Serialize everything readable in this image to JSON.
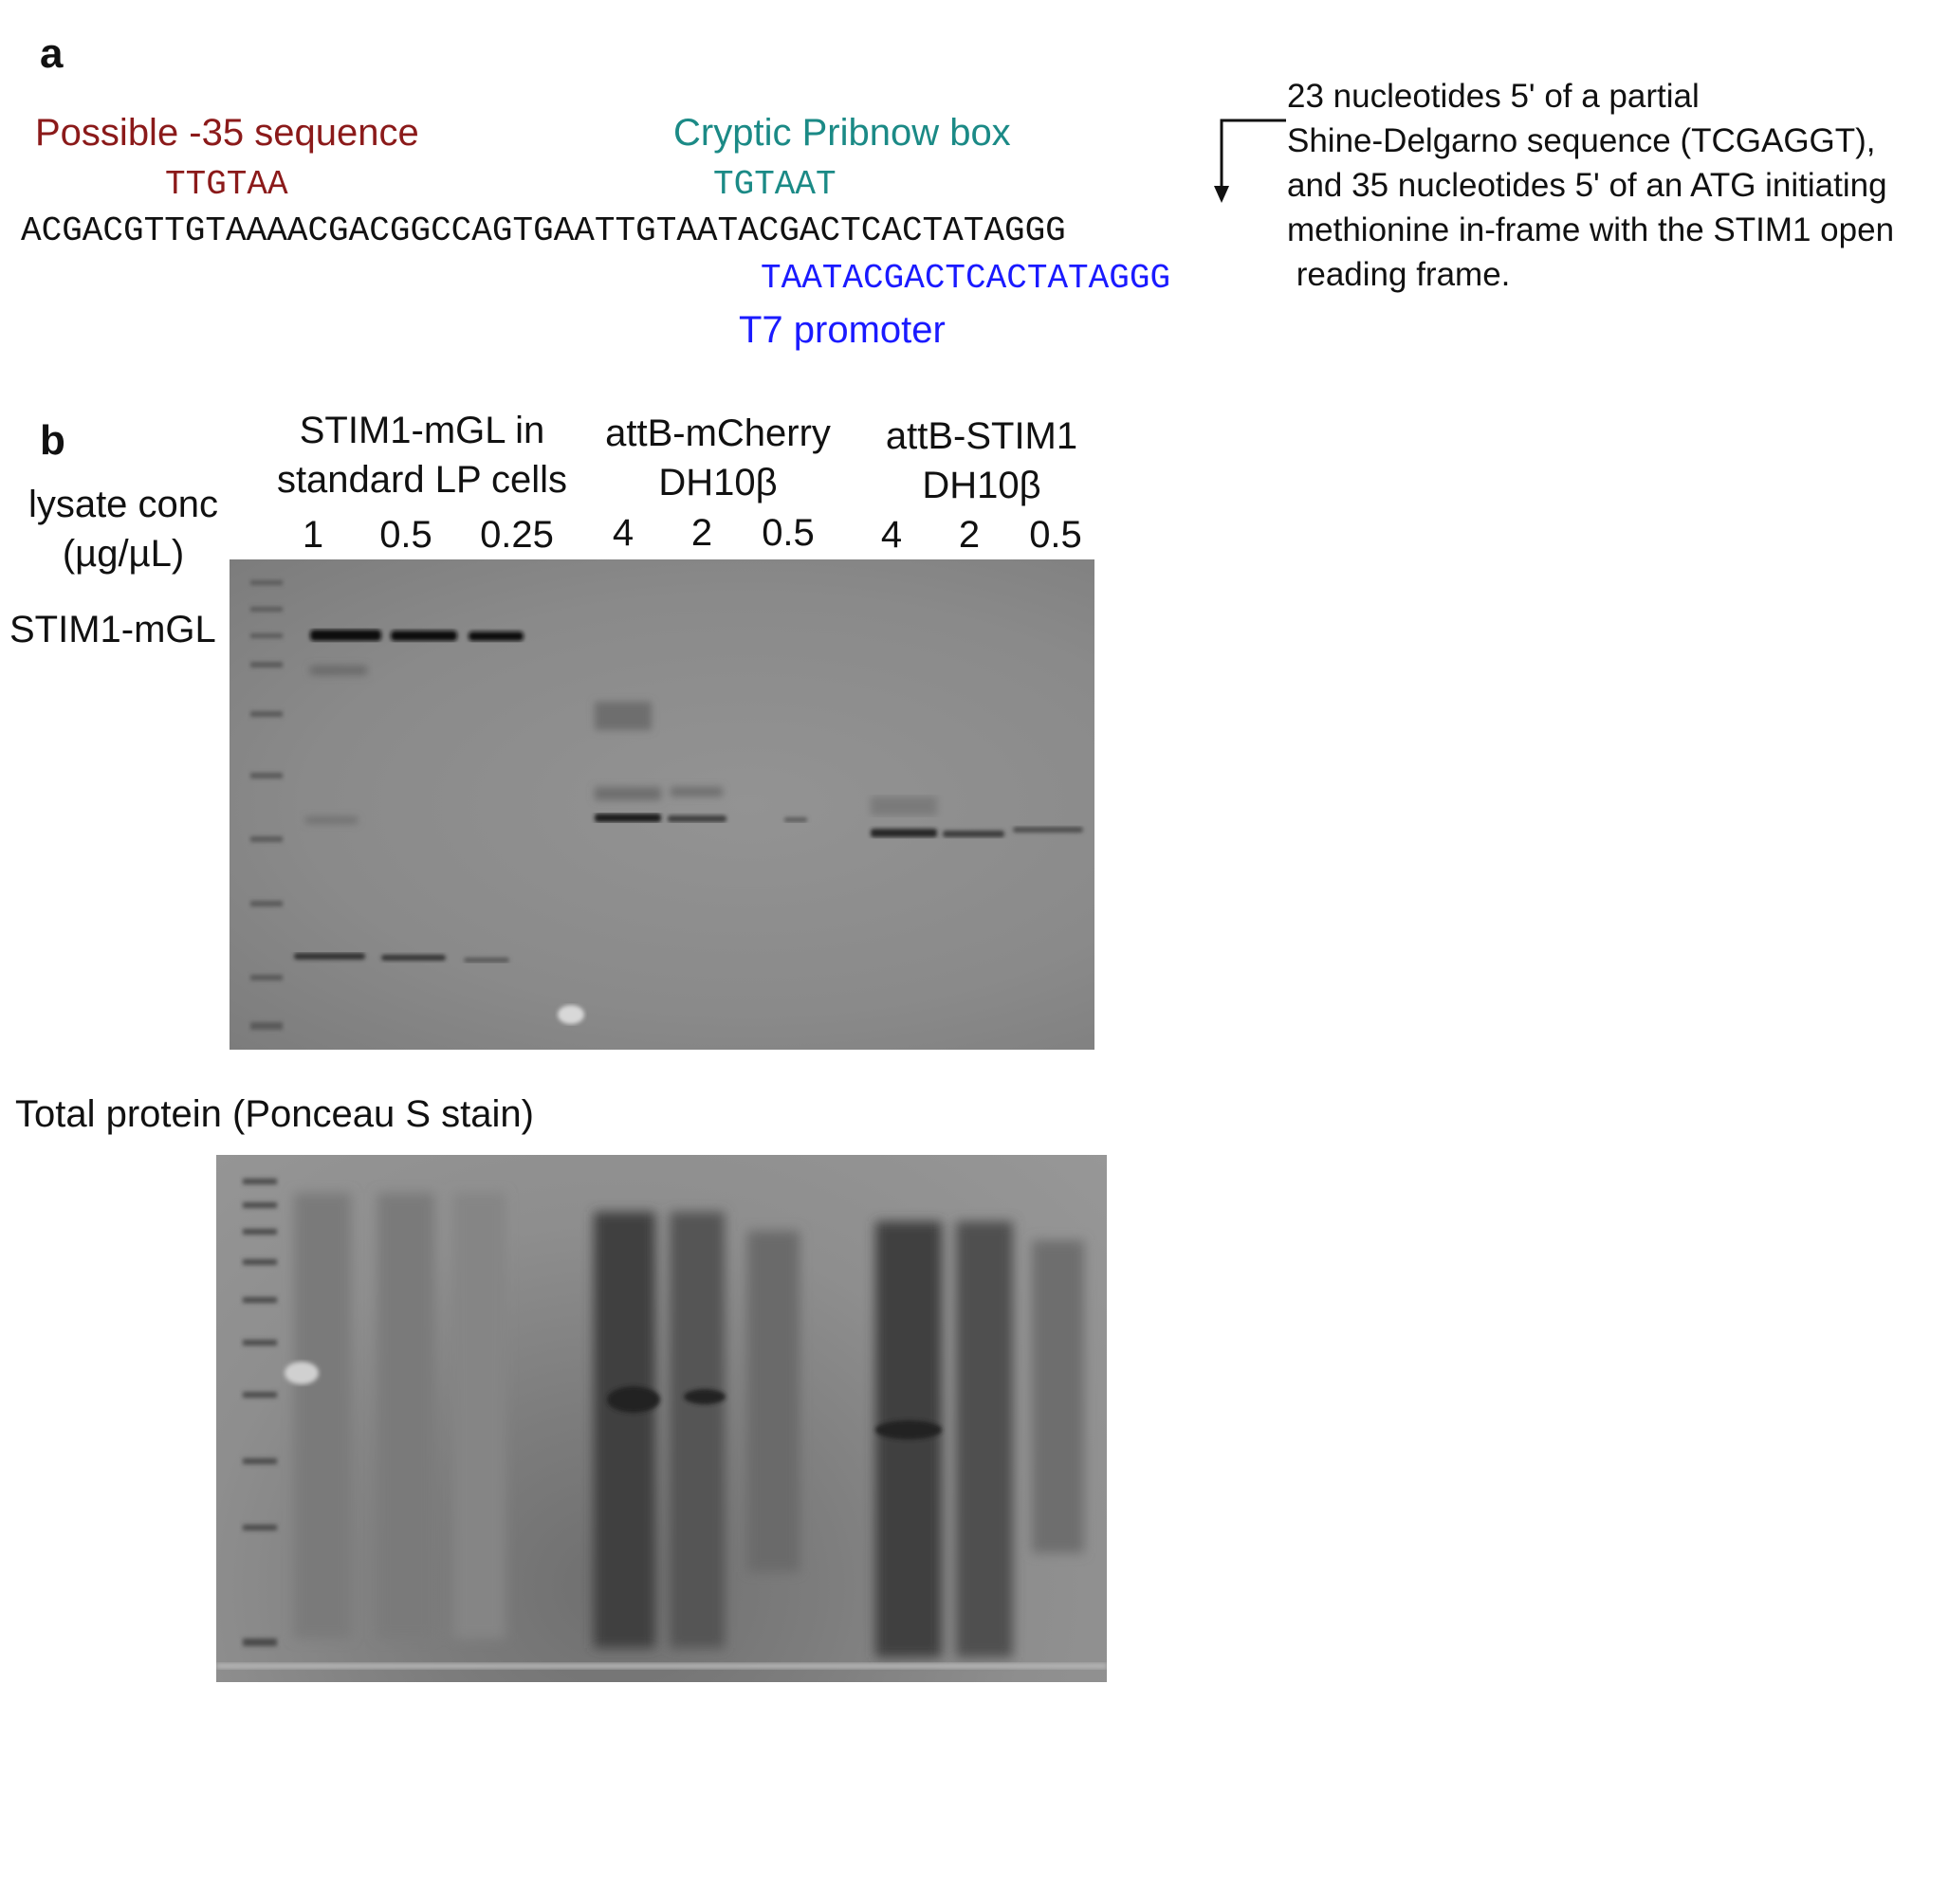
{
  "panel_a": {
    "letter": "a",
    "minus35_label": "Possible -35 sequence",
    "minus35_seq": "TTGTAA",
    "pribnow_label": "Cryptic Pribnow box",
    "pribnow_seq": "TGTAAT",
    "main_sequence": "ACGACGTTGTAAAACGACGGCCAGTGAATTGTAATACGACTCACTATAGGG",
    "t7_seq": "TAATACGACTCACTATAGGG",
    "t7_label": "T7 promoter",
    "note_lines": [
      "23 nucleotides 5' of a partial",
      "Shine-Delgarno sequence (TCGAGGT),",
      "and 35 nucleotides 5' of an ATG initiating",
      "methionine in-frame with the STIM1 open",
      " reading frame."
    ],
    "colors": {
      "minus35": "#8b1a1a",
      "pribnow": "#1b8a86",
      "t7": "#1a1aff"
    }
  },
  "panel_b": {
    "letter": "b",
    "row_label_line1": "lysate conc",
    "row_label_line2": "(µg/µL)",
    "band_label": "STIM1-mGL",
    "groups": [
      {
        "line1": "STIM1-mGL in",
        "line2": "standard LP cells",
        "concs": [
          "1",
          "0.5",
          "0.25"
        ]
      },
      {
        "line1": "attB-mCherry",
        "line2": "DH10β",
        "concs": [
          "4",
          "2",
          "0.5"
        ]
      },
      {
        "line1": "attB-STIM1",
        "line2": "DH10β",
        "concs": [
          "4",
          "2",
          "0.5"
        ]
      }
    ],
    "stain_label": "Total protein (Ponceau S stain)"
  }
}
